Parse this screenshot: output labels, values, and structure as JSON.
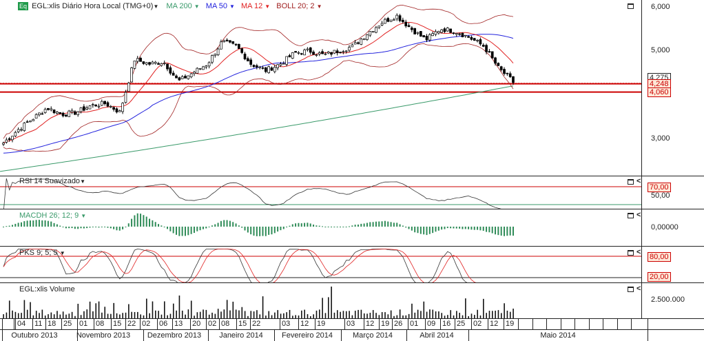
{
  "header": {
    "symbol_badge": "Eq",
    "symbol": "EGL:xlis Diário Hora Local (TMG+0)",
    "indicators": [
      {
        "label": "MA 200",
        "color": "#3a9a6a"
      },
      {
        "label": "MA 50",
        "color": "#2222dd"
      },
      {
        "label": "MA 12",
        "color": "#e02020"
      },
      {
        "label": "BOLL 20; 2",
        "color": "#a02020"
      }
    ]
  },
  "price_axis": {
    "labels": [
      "6,000",
      "5,000",
      "3,000"
    ],
    "price_labels": [
      "4,275",
      "4,248",
      "4,060"
    ]
  },
  "panels": {
    "rsi": {
      "title": "RSI 14 Suavizado",
      "levels": [
        "70,00",
        "50,00"
      ]
    },
    "macd": {
      "title": "MACDH 26; 12; 9",
      "axis": "0,00000"
    },
    "pks": {
      "title": "PKS 9; 5; 5",
      "levels": [
        "80,00",
        "20,00"
      ]
    },
    "volume": {
      "title": "EGL:xlis Volume",
      "axis": "2.500.000"
    }
  },
  "date_axis": {
    "days": [
      "04",
      "11",
      "18",
      "25",
      "01",
      "08",
      "15",
      "22",
      "02",
      "06",
      "13",
      "20",
      "02",
      "08",
      "15",
      "22",
      "03",
      "12",
      "19",
      "03",
      "12",
      "19",
      "26",
      "01",
      "09",
      "16",
      "25",
      "02",
      "12",
      "19"
    ],
    "months": [
      "Outubro 2013",
      "Novembro 2013",
      "Dezembro 2013",
      "Janeiro 2014",
      "Fevereiro 2014",
      "Março 2014",
      "Abril 2014",
      "Maio 2014"
    ]
  },
  "chart_data": {
    "type": "candlestick",
    "title": "EGL:xlis Diário",
    "ylim": [
      2200,
      6100
    ],
    "anchor_closes": [
      2.9,
      3.2,
      3.45,
      3.7,
      3.55,
      3.6,
      3.75,
      3.8,
      3.6,
      4.8,
      4.7,
      4.75,
      4.3,
      4.5,
      4.7,
      5.2,
      5.1,
      4.7,
      4.55,
      4.7,
      4.95,
      5.0,
      4.9,
      5.0,
      5.1,
      5.4,
      5.65,
      5.8,
      5.5,
      5.25,
      5.5,
      5.45,
      5.3,
      5.1,
      4.6,
      4.3
    ],
    "levels": [
      4.275,
      4.248,
      4.06
    ]
  }
}
